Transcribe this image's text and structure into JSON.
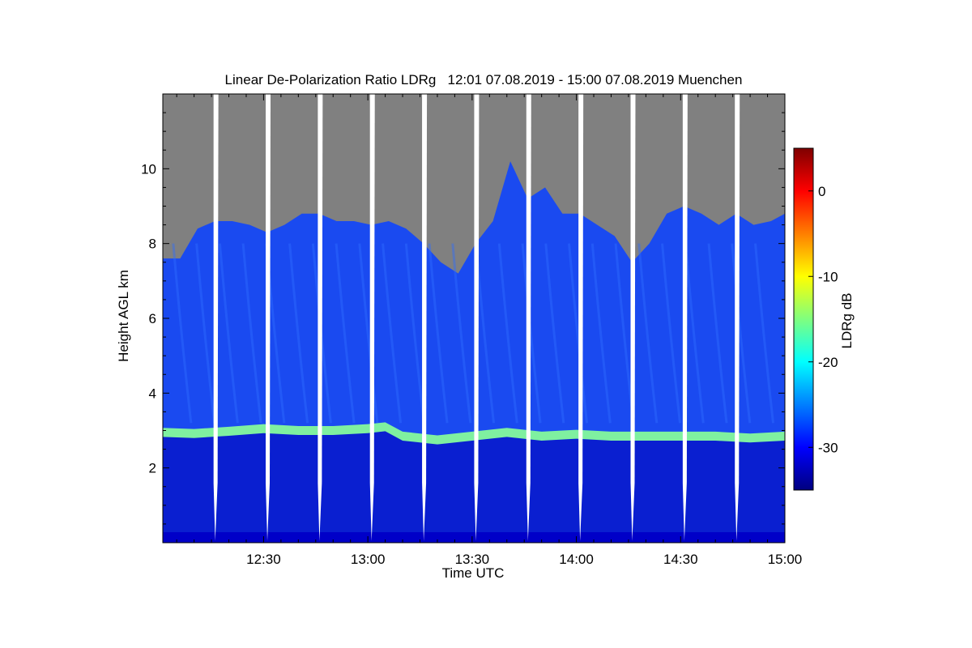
{
  "chart_data": {
    "type": "heatmap",
    "title": "Linear De-Polarization Ratio LDRg   12:01 07.08.2019 - 15:00 07.08.2019 Muenchen",
    "xlabel": "Time UTC",
    "ylabel": "Height AGL km",
    "x_range_minutes": [
      721,
      900
    ],
    "x_ticks": [
      {
        "minutes": 750,
        "label": "12:30"
      },
      {
        "minutes": 780,
        "label": "13:00"
      },
      {
        "minutes": 810,
        "label": "13:30"
      },
      {
        "minutes": 840,
        "label": "14:00"
      },
      {
        "minutes": 870,
        "label": "14:30"
      },
      {
        "minutes": 900,
        "label": "15:00"
      }
    ],
    "y_range_km": [
      0.0,
      12.0
    ],
    "y_ticks": [
      {
        "value": 2,
        "label": "2"
      },
      {
        "value": 4,
        "label": "4"
      },
      {
        "value": 6,
        "label": "6"
      },
      {
        "value": 8,
        "label": "8"
      },
      {
        "value": 10,
        "label": "10"
      }
    ],
    "colorbar": {
      "label": "LDRg dB",
      "range": [
        -35,
        5
      ],
      "ticks": [
        {
          "value": 0,
          "label": "0"
        },
        {
          "value": -10,
          "label": "-10"
        },
        {
          "value": -20,
          "label": "-20"
        },
        {
          "value": -30,
          "label": "-30"
        }
      ],
      "colormap": [
        "#00007f",
        "#0000ff",
        "#007fff",
        "#00ffff",
        "#7fff7f",
        "#ffff00",
        "#ff7f00",
        "#ff0000",
        "#7f0000"
      ]
    },
    "colors": {
      "no_signal_gray": "#808080",
      "gap_white": "#ffffff",
      "lower_layer": "#0a1fd0",
      "upper_layer": "#1a4af0",
      "melting_band": "#7ff0a0"
    },
    "data_gaps_minutes": [
      736.3,
      751.3,
      766.3,
      781.3,
      796.3,
      811.3,
      826.3,
      841.3,
      856.3,
      871.3,
      886.3
    ],
    "melting_layer_height_km": [
      [
        721,
        2.95
      ],
      [
        730,
        2.92
      ],
      [
        740,
        2.98
      ],
      [
        750,
        3.05
      ],
      [
        760,
        3.0
      ],
      [
        770,
        3.0
      ],
      [
        780,
        3.05
      ],
      [
        785,
        3.1
      ],
      [
        790,
        2.85
      ],
      [
        800,
        2.75
      ],
      [
        810,
        2.85
      ],
      [
        820,
        2.95
      ],
      [
        830,
        2.85
      ],
      [
        840,
        2.9
      ],
      [
        850,
        2.85
      ],
      [
        860,
        2.85
      ],
      [
        870,
        2.85
      ],
      [
        880,
        2.85
      ],
      [
        890,
        2.8
      ],
      [
        900,
        2.85
      ]
    ],
    "signal_top_height_km": [
      [
        721,
        7.6
      ],
      [
        726,
        7.6
      ],
      [
        731,
        8.4
      ],
      [
        736,
        8.6
      ],
      [
        741,
        8.6
      ],
      [
        746,
        8.5
      ],
      [
        751,
        8.3
      ],
      [
        756,
        8.5
      ],
      [
        761,
        8.8
      ],
      [
        766,
        8.8
      ],
      [
        771,
        8.6
      ],
      [
        776,
        8.6
      ],
      [
        781,
        8.5
      ],
      [
        786,
        8.6
      ],
      [
        791,
        8.4
      ],
      [
        796,
        8.0
      ],
      [
        801,
        7.5
      ],
      [
        806,
        7.2
      ],
      [
        811,
        8.0
      ],
      [
        816,
        8.6
      ],
      [
        821,
        10.2
      ],
      [
        826,
        9.2
      ],
      [
        831,
        9.5
      ],
      [
        836,
        8.8
      ],
      [
        841,
        8.8
      ],
      [
        846,
        8.5
      ],
      [
        851,
        8.2
      ],
      [
        856,
        7.5
      ],
      [
        861,
        8.0
      ],
      [
        866,
        8.8
      ],
      [
        871,
        9.0
      ],
      [
        876,
        8.8
      ],
      [
        881,
        8.5
      ],
      [
        886,
        8.8
      ],
      [
        891,
        8.5
      ],
      [
        896,
        8.6
      ],
      [
        900,
        8.8
      ]
    ]
  }
}
